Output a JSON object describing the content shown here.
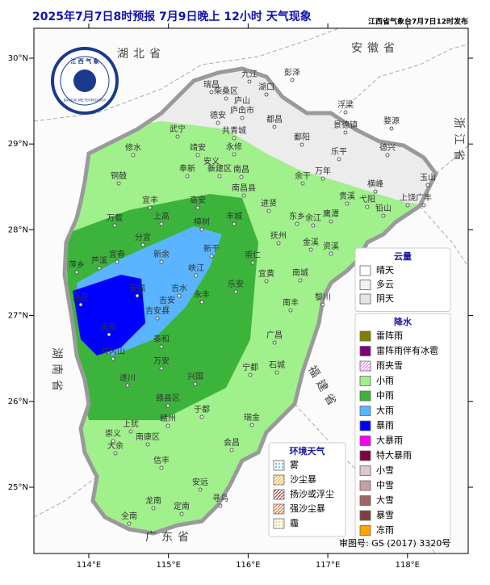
{
  "header": {
    "title": "2025年7月7日8时预报 7月9日晚上 12小时  天气现象",
    "issuer": "江西省气象台7月7日12时发布"
  },
  "logo": {
    "name": "江 西 气 象",
    "english": "JIANGXI METEOROLOGY"
  },
  "axes": {
    "lon_ticks": [
      {
        "value": 114,
        "label": "114°E"
      },
      {
        "value": 115,
        "label": "115°E"
      },
      {
        "value": 116,
        "label": "116°E"
      },
      {
        "value": 117,
        "label": "117°E"
      },
      {
        "value": 118,
        "label": "118°E"
      }
    ],
    "lat_ticks": [
      {
        "value": 30,
        "label": "30°N"
      },
      {
        "value": 29,
        "label": "29°N"
      },
      {
        "value": 28,
        "label": "28°N"
      },
      {
        "value": 27,
        "label": "27°N"
      },
      {
        "value": 26,
        "label": "26°N"
      },
      {
        "value": 25,
        "label": "25°N"
      }
    ]
  },
  "provinces": [
    "湖北省",
    "安徽省",
    "浙江省",
    "湖南省",
    "福建省",
    "广东省"
  ],
  "cities": [
    "九江",
    "瑞昌",
    "柴桑区",
    "湖口",
    "彭泽",
    "庐山",
    "德安",
    "庐山市",
    "共青城",
    "都昌",
    "武宁",
    "修水",
    "靖安",
    "永修",
    "安义",
    "奉新",
    "新建区",
    "南昌",
    "南昌县",
    "铜鼓",
    "宜丰",
    "高安",
    "进贤",
    "余干",
    "万年",
    "鄱阳",
    "乐平",
    "景德镇",
    "浮梁",
    "婺源",
    "德兴",
    "玉山",
    "上饶",
    "广丰",
    "铅山",
    "横峰",
    "弋阳",
    "贵溪",
    "鹰潭",
    "余江",
    "东乡",
    "抚州",
    "万载",
    "上高",
    "宜春",
    "分宜",
    "新余",
    "萍乡",
    "芦溪",
    "樟树",
    "丰城",
    "新干",
    "峡江",
    "崇仁",
    "宜黄",
    "南城",
    "金溪",
    "资溪",
    "黎川",
    "南丰",
    "乐安",
    "永丰",
    "吉水",
    "安福",
    "吉安",
    "吉安县",
    "莲花",
    "永新",
    "井冈山",
    "泰和",
    "遂川",
    "万安",
    "兴国",
    "宁都",
    "广昌",
    "石城",
    "于都",
    "瑞金",
    "赣县区",
    "赣州",
    "上犹",
    "崇义",
    "南康区",
    "大余",
    "信丰",
    "会昌",
    "安远",
    "寻乌",
    "定南",
    "龙南",
    "全南"
  ],
  "legend": {
    "cloud": {
      "title": "云量",
      "items": [
        {
          "name": "晴天",
          "color": "#ffffff"
        },
        {
          "name": "多云",
          "color": "#f2f2f2"
        },
        {
          "name": "阴天",
          "color": "#e4e4e4"
        }
      ]
    },
    "precip": {
      "title": "降水",
      "items": [
        {
          "name": "雷阵雨",
          "color": "#808000"
        },
        {
          "name": "雷阵雨伴有冰雹",
          "color": "#800080"
        },
        {
          "name": "雨夹雪",
          "color": "#ff66ff",
          "pattern": "hatch"
        },
        {
          "name": "小雨",
          "color": "#a0f08c"
        },
        {
          "name": "中雨",
          "color": "#3cb43c"
        },
        {
          "name": "大雨",
          "color": "#5ab4ff"
        },
        {
          "name": "暴雨",
          "color": "#0000fe"
        },
        {
          "name": "大暴雨",
          "color": "#fa00fa"
        },
        {
          "name": "特大暴雨",
          "color": "#800040"
        },
        {
          "name": "小雪",
          "color": "#dcc8c8"
        },
        {
          "name": "中雪",
          "color": "#c8a0a0"
        },
        {
          "name": "大雪",
          "color": "#a06464"
        },
        {
          "name": "暴雪",
          "color": "#804040"
        },
        {
          "name": "冻雨",
          "color": "#ffa500"
        }
      ]
    },
    "env": {
      "title": "环境天气",
      "items": [
        {
          "name": "雾",
          "color": "#1a9a9a",
          "pattern": "dots"
        },
        {
          "name": "沙尘暴",
          "color": "#f0a000",
          "pattern": "hatch"
        },
        {
          "name": "扬沙或浮尘",
          "color": "#a02020",
          "pattern": "hatch"
        },
        {
          "name": "强沙尘暴",
          "color": "#e05010",
          "pattern": "hatch"
        },
        {
          "name": "霾",
          "color": "#e0c000",
          "pattern": "dots"
        }
      ]
    }
  },
  "approval": "审图号: GS (2017) 3320号"
}
